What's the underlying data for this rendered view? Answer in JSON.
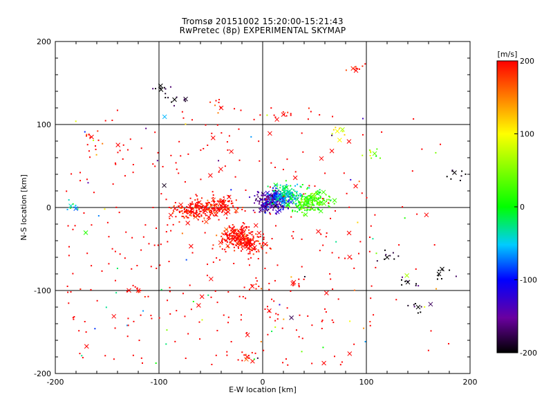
{
  "chart_data": {
    "type": "scatter",
    "title": "Tromsø 20151002 15:20:00-15:21:43",
    "subtitle": "RwPretec (8p) EXPERIMENTAL SKYMAP",
    "xlabel": "E-W location [km]",
    "ylabel": "N-S location [km]",
    "xlim": [
      -200,
      200
    ],
    "ylim": [
      -200,
      200
    ],
    "x_ticks": [
      -200,
      -100,
      0,
      100,
      200
    ],
    "y_ticks": [
      -200,
      -100,
      0,
      100,
      200
    ],
    "grid": true,
    "colorbar": {
      "label": "[m/s]",
      "range": [
        -200,
        200
      ],
      "ticks": [
        -200,
        -100,
        0,
        100,
        200
      ],
      "placement": "right",
      "colors": [
        "#000000",
        "#7700aa",
        "#0000ff",
        "#00ccff",
        "#00ff00",
        "#ffff00",
        "#ff0000"
      ]
    },
    "markers": [
      "dot",
      "cross"
    ],
    "series": [
      {
        "values": [
          {
            "x": -55,
            "y": 0,
            "v": 200
          },
          {
            "x": -70,
            "y": -5,
            "v": 200
          },
          {
            "x": -40,
            "y": 2,
            "v": 200
          },
          {
            "x": -28,
            "y": -38,
            "v": 200
          },
          {
            "x": -20,
            "y": -32,
            "v": 200
          },
          {
            "x": -10,
            "y": -45,
            "v": 200
          },
          {
            "x": 10,
            "y": 8,
            "v": -150
          },
          {
            "x": 5,
            "y": 6,
            "v": -150
          },
          {
            "x": 20,
            "y": 10,
            "v": -80
          },
          {
            "x": 25,
            "y": 18,
            "v": -30
          },
          {
            "x": 40,
            "y": 5,
            "v": 20
          },
          {
            "x": 50,
            "y": 10,
            "v": 30
          },
          {
            "x": 140,
            "y": -90,
            "v": -200
          },
          {
            "x": 150,
            "y": -120,
            "v": -200
          },
          {
            "x": 120,
            "y": -60,
            "v": -200
          },
          {
            "x": 170,
            "y": -80,
            "v": -200
          },
          {
            "x": -85,
            "y": 130,
            "v": -200
          },
          {
            "x": -98,
            "y": 142,
            "v": -200
          },
          {
            "x": 185,
            "y": 42,
            "v": -200
          },
          {
            "x": 72,
            "y": 92,
            "v": 100
          },
          {
            "x": 108,
            "y": 65,
            "v": 40
          },
          {
            "x": -185,
            "y": 2,
            "v": -40
          },
          {
            "x": -165,
            "y": 85,
            "v": 200
          },
          {
            "x": -120,
            "y": -100,
            "v": 200
          },
          {
            "x": -10,
            "y": -95,
            "v": 200
          },
          {
            "x": 30,
            "y": -90,
            "v": 200
          },
          {
            "x": -15,
            "y": -180,
            "v": 200
          },
          {
            "x": -40,
            "y": 120,
            "v": 200
          },
          {
            "x": 20,
            "y": 112,
            "v": 200
          },
          {
            "x": 90,
            "y": 165,
            "v": 200
          }
        ]
      }
    ]
  }
}
